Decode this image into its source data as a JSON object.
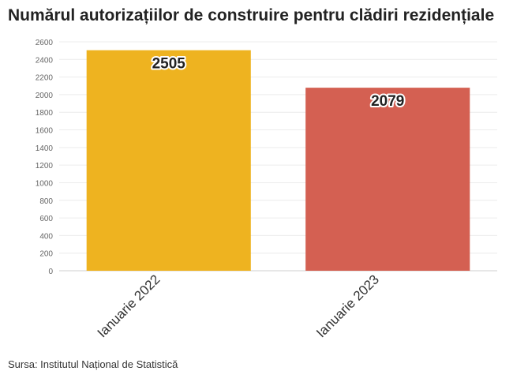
{
  "title": "Numărul autorizațiilor de construire pentru clădiri rezidențiale",
  "source": "Sursa: Institutul Național de Statistică",
  "chart_data": {
    "type": "bar",
    "categories": [
      "Ianuarie 2022",
      "Ianuarie 2023"
    ],
    "values": [
      2505,
      2079
    ],
    "data_labels": [
      "2505",
      "2079"
    ],
    "colors": [
      "#EEB320",
      "#D46052"
    ],
    "ylim": [
      0,
      2600
    ],
    "yticks": [
      0,
      200,
      400,
      600,
      800,
      1000,
      1200,
      1400,
      1600,
      1800,
      2000,
      2200,
      2400,
      2600
    ],
    "grid": true,
    "legend": "none",
    "xlabel": "",
    "ylabel": ""
  }
}
